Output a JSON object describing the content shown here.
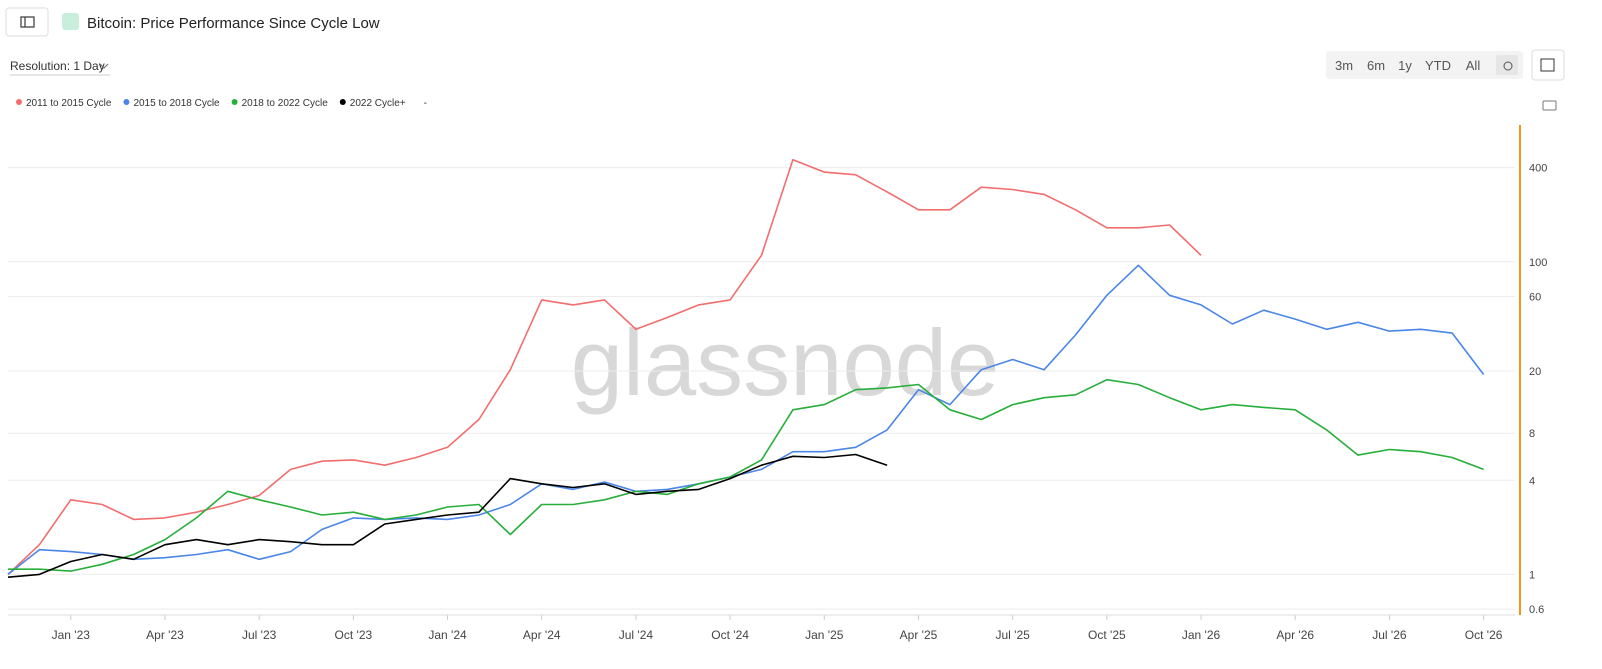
{
  "ui": {
    "title": "Bitcoin: Price Performance Since Cycle Low",
    "resolution": "Resolution: 1 Day",
    "range_buttons": [
      "3m",
      "6m",
      "1y",
      "YTD",
      "All"
    ],
    "legend_extra": "-",
    "watermark": "glassnode"
  },
  "chart_data": {
    "type": "line",
    "log_y": true,
    "grid": true,
    "x": [
      "2022-11",
      "2022-12",
      "2023-01",
      "2023-02",
      "2023-03",
      "2023-04",
      "2023-05",
      "2023-06",
      "2023-07",
      "2023-08",
      "2023-09",
      "2023-10",
      "2023-11",
      "2023-12",
      "2024-01",
      "2024-02",
      "2024-03",
      "2024-04",
      "2024-05",
      "2024-06",
      "2024-07",
      "2024-08",
      "2024-09",
      "2024-10",
      "2024-11",
      "2024-12",
      "2025-01",
      "2025-02",
      "2025-03",
      "2025-04",
      "2025-05",
      "2025-06",
      "2025-07",
      "2025-08",
      "2025-09",
      "2025-10",
      "2025-11",
      "2025-12",
      "2026-01",
      "2026-02",
      "2026-03",
      "2026-04",
      "2026-05",
      "2026-06",
      "2026-07",
      "2026-08",
      "2026-09",
      "2026-10"
    ],
    "xlim": [
      "2022-11",
      "2026-11"
    ],
    "xticks": [
      {
        "value": "2023-01",
        "label": "Jan '23"
      },
      {
        "value": "2023-04",
        "label": "Apr '23"
      },
      {
        "value": "2023-07",
        "label": "Jul '23"
      },
      {
        "value": "2023-10",
        "label": "Oct '23"
      },
      {
        "value": "2024-01",
        "label": "Jan '24"
      },
      {
        "value": "2024-04",
        "label": "Apr '24"
      },
      {
        "value": "2024-07",
        "label": "Jul '24"
      },
      {
        "value": "2024-10",
        "label": "Oct '24"
      },
      {
        "value": "2025-01",
        "label": "Jan '25"
      },
      {
        "value": "2025-04",
        "label": "Apr '25"
      },
      {
        "value": "2025-07",
        "label": "Jul '25"
      },
      {
        "value": "2025-10",
        "label": "Oct '25"
      },
      {
        "value": "2026-01",
        "label": "Jan '26"
      },
      {
        "value": "2026-04",
        "label": "Apr '26"
      },
      {
        "value": "2026-07",
        "label": "Jul '26"
      },
      {
        "value": "2026-10",
        "label": "Oct '26"
      }
    ],
    "ylim": [
      0.55,
      750
    ],
    "yticks": [
      0.6,
      1,
      4,
      8,
      20,
      60,
      100,
      400
    ],
    "series": [
      {
        "name": "2011 to 2015 Cycle",
        "color": "#f26d6d",
        "values": [
          1.0,
          1.55,
          3.0,
          2.8,
          2.25,
          2.3,
          2.5,
          2.8,
          3.2,
          4.7,
          5.3,
          5.4,
          5.0,
          5.6,
          6.5,
          9.8,
          20.4,
          57,
          53,
          57,
          37,
          44,
          53,
          57,
          110,
          450,
          375,
          360,
          280,
          215,
          215,
          300,
          290,
          270,
          215,
          165,
          165,
          172,
          110,
          null,
          null,
          null,
          null,
          null,
          null,
          null,
          null,
          null
        ]
      },
      {
        "name": "2015 to 2018 Cycle",
        "color": "#4a86e8",
        "values": [
          1.0,
          1.44,
          1.4,
          1.34,
          1.25,
          1.28,
          1.34,
          1.44,
          1.25,
          1.4,
          1.94,
          2.3,
          2.25,
          2.3,
          2.25,
          2.4,
          2.8,
          3.8,
          3.5,
          3.9,
          3.4,
          3.5,
          3.8,
          4.2,
          4.7,
          6.1,
          6.1,
          6.5,
          8.4,
          15.2,
          12.2,
          20.4,
          23.7,
          20.4,
          34,
          61,
          95,
          61,
          53,
          40,
          49,
          43,
          37,
          41,
          36,
          37,
          35,
          19
        ]
      },
      {
        "name": "2018 to 2022 Cycle",
        "color": "#27ae3b",
        "values": [
          1.08,
          1.08,
          1.05,
          1.16,
          1.34,
          1.67,
          2.3,
          3.4,
          3.0,
          2.7,
          2.4,
          2.5,
          2.25,
          2.4,
          2.7,
          2.8,
          1.8,
          2.8,
          2.8,
          3.0,
          3.4,
          3.25,
          3.8,
          4.2,
          5.4,
          11.3,
          12.2,
          15.2,
          15.6,
          16.4,
          11.3,
          9.8,
          12.2,
          13.5,
          14.1,
          17.6,
          16.4,
          13.5,
          11.3,
          12.2,
          11.7,
          11.3,
          8.4,
          5.8,
          6.3,
          6.1,
          5.6,
          4.7
        ]
      },
      {
        "name": "2022 Cycle+",
        "color": "#000000",
        "values": [
          0.96,
          1.0,
          1.21,
          1.34,
          1.25,
          1.55,
          1.67,
          1.55,
          1.67,
          1.62,
          1.55,
          1.55,
          2.1,
          2.25,
          2.4,
          2.5,
          4.1,
          3.8,
          3.6,
          3.8,
          3.25,
          3.4,
          3.5,
          4.1,
          5.0,
          5.7,
          5.6,
          5.85,
          5.0,
          null,
          null,
          null,
          null,
          null,
          null,
          null,
          null,
          null,
          null,
          null,
          null,
          null,
          null,
          null,
          null,
          null,
          null,
          null
        ]
      }
    ]
  }
}
